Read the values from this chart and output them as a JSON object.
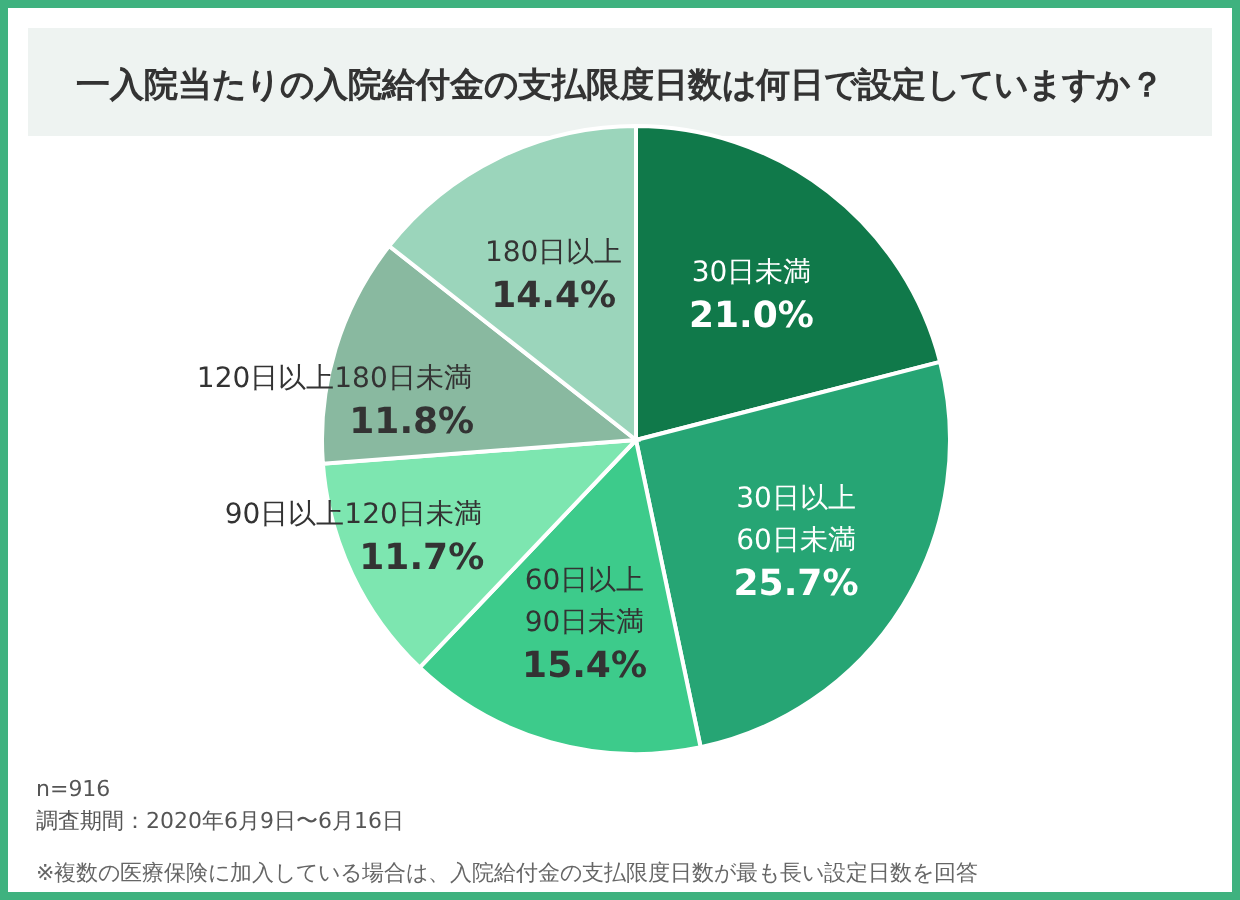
{
  "chart_data": {
    "type": "pie",
    "title": "一入院当たりの入院給付金の支払限度日数は何日で設定していますか？",
    "categories": [
      "30日未満",
      "30日以上\n60日未満",
      "60日以上\n90日未満",
      "90日以上120日未満",
      "120日以上180日未満",
      "180日以上"
    ],
    "values": [
      21.0,
      25.7,
      15.4,
      11.7,
      11.8,
      14.4
    ],
    "colors": [
      "#10794a",
      "#26a574",
      "#3dcb8b",
      "#7de6b0",
      "#89b9a0",
      "#9bd5bb"
    ],
    "value_labels": [
      "21.0%",
      "25.7%",
      "15.4%",
      "11.7%",
      "11.8%",
      "14.4%"
    ],
    "annotations": [
      "n=916",
      "調査期間：2020年6月9日〜6月16日",
      "※複数の医療保険に加入している場合は、入院給付金の支払限度日数が最も長い設定日数を回答"
    ]
  }
}
